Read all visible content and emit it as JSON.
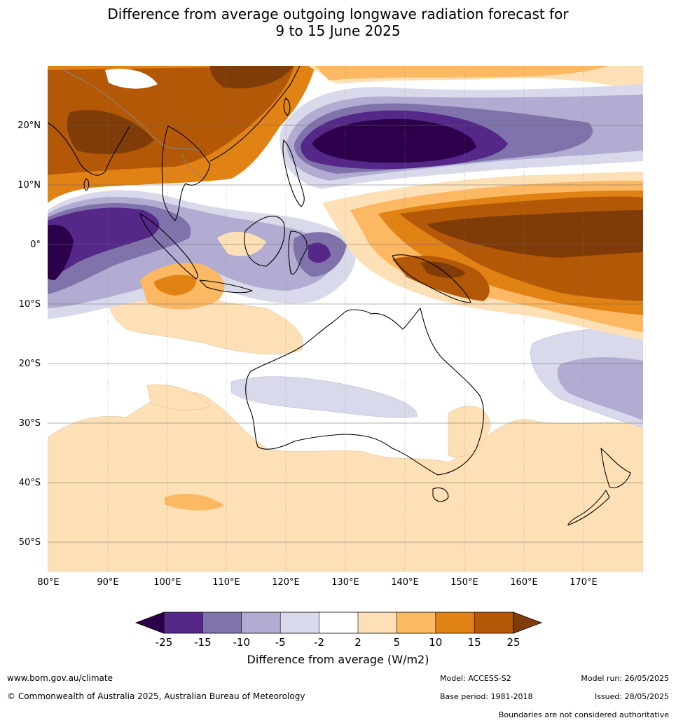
{
  "title": {
    "line1": "Difference from average outgoing longwave radiation forecast for",
    "line2": "9 to 15 June 2025"
  },
  "axes": {
    "lat_labels": [
      "20°N",
      "10°N",
      "0°",
      "10°S",
      "20°S",
      "30°S",
      "40°S",
      "50°S"
    ],
    "lon_labels": [
      "80°E",
      "90°E",
      "100°E",
      "110°E",
      "120°E",
      "130°E",
      "140°E",
      "150°E",
      "160°E",
      "170°E"
    ],
    "lat_values": [
      20,
      10,
      0,
      -10,
      -20,
      -30,
      -40,
      -50
    ],
    "lon_values": [
      80,
      90,
      100,
      110,
      120,
      130,
      140,
      150,
      160,
      170
    ],
    "lon_range": [
      80,
      180
    ],
    "lat_range": [
      -55,
      30
    ]
  },
  "colorbar": {
    "tick_labels": [
      "-25",
      "-15",
      "-10",
      "-5",
      "-2",
      "2",
      "5",
      "10",
      "15",
      "25"
    ],
    "colors": [
      "#2d004b",
      "#542788",
      "#8073ac",
      "#b2abd2",
      "#d8daeb",
      "#ffffff",
      "#fee0b6",
      "#fdb863",
      "#e08214",
      "#b35806",
      "#7f3b08"
    ],
    "title": "Difference from average (W/m2)"
  },
  "footer": {
    "website": "www.bom.gov.au/climate",
    "copyright": "© Commonwealth of Australia 2025, Australian Bureau of Meteorology",
    "model": "Model: ACCESS-S2",
    "base_period": "Base period: 1981-2018",
    "model_run": "Model run: 26/05/2025",
    "issued": "Issued: 28/05/2025",
    "disclaimer": "Boundaries are not considered authoritative"
  }
}
